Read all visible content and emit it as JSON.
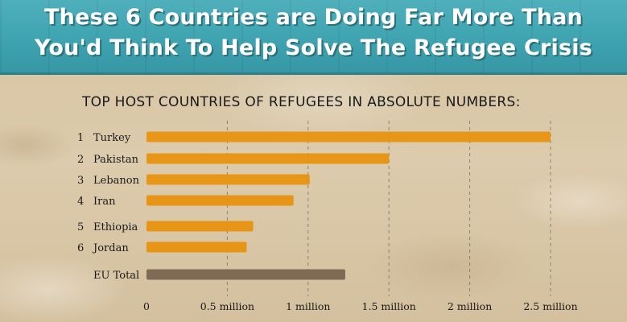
{
  "header": {
    "title_line1": "These 6 Countries are Doing Far More Than",
    "title_line2": "You'd Think To Help Solve The Refugee Crisis"
  },
  "colors": {
    "banner": "#3fa3b0",
    "bar_country": "#e8920f",
    "bar_eu": "#7a6552",
    "gridline": "#555555"
  },
  "chart_data": {
    "type": "bar",
    "orientation": "horizontal",
    "title": "TOP HOST COUNTRIES OF REFUGEES IN ABSOLUTE NUMBERS:",
    "xlabel": "",
    "ylabel": "",
    "xlim": [
      0,
      2500000
    ],
    "grid": "vertical dashed",
    "categories": [
      {
        "rank": "1",
        "name": "Turkey",
        "value": 2500000,
        "group": "country"
      },
      {
        "rank": "2",
        "name": "Pakistan",
        "value": 1500000,
        "group": "country"
      },
      {
        "rank": "3",
        "name": "Lebanon",
        "value": 1010000,
        "group": "country"
      },
      {
        "rank": "4",
        "name": "Iran",
        "value": 910000,
        "group": "country"
      },
      {
        "rank": "5",
        "name": "Ethiopia",
        "value": 660000,
        "group": "country"
      },
      {
        "rank": "6",
        "name": "Jordan",
        "value": 620000,
        "group": "country"
      },
      {
        "rank": "",
        "name": "EU Total",
        "value": 1230000,
        "group": "eu"
      }
    ],
    "ticks": [
      {
        "value": 0,
        "label": "0"
      },
      {
        "value": 500000,
        "label": "0.5 million"
      },
      {
        "value": 1000000,
        "label": "1 million"
      },
      {
        "value": 1500000,
        "label": "1.5 million"
      },
      {
        "value": 2000000,
        "label": "2 million"
      },
      {
        "value": 2500000,
        "label": "2.5 million"
      }
    ]
  }
}
